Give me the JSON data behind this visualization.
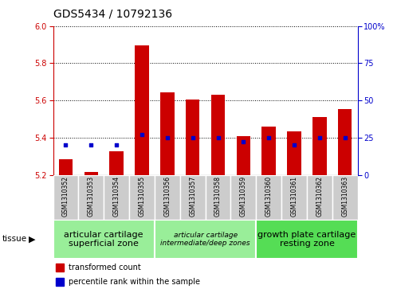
{
  "title": "GDS5434 / 10792136",
  "samples": [
    "GSM1310352",
    "GSM1310353",
    "GSM1310354",
    "GSM1310355",
    "GSM1310356",
    "GSM1310357",
    "GSM1310358",
    "GSM1310359",
    "GSM1310360",
    "GSM1310361",
    "GSM1310362",
    "GSM1310363"
  ],
  "transformed_count": [
    5.285,
    5.215,
    5.325,
    5.895,
    5.645,
    5.605,
    5.63,
    5.41,
    5.46,
    5.435,
    5.51,
    5.555
  ],
  "percentile_rank": [
    20,
    20,
    20,
    27,
    25,
    25,
    25,
    22,
    25,
    20,
    25,
    25
  ],
  "base_value": 5.2,
  "ylim_left": [
    5.2,
    6.0
  ],
  "ylim_right": [
    0,
    100
  ],
  "yticks_left": [
    5.2,
    5.4,
    5.6,
    5.8,
    6.0
  ],
  "yticks_right": [
    0,
    25,
    50,
    75,
    100
  ],
  "bar_color": "#cc0000",
  "dot_color": "#0000cc",
  "bar_width": 0.55,
  "groups": [
    {
      "label": "articular cartilage\nsuperficial zone",
      "start": 0,
      "end": 4,
      "color": "#99ee99",
      "fontsize": 8,
      "italic": false
    },
    {
      "label": "articular cartilage\nintermediate/deep zones",
      "start": 4,
      "end": 8,
      "color": "#99ee99",
      "fontsize": 6.5,
      "italic": true
    },
    {
      "label": "growth plate cartilage\nresting zone",
      "start": 8,
      "end": 12,
      "color": "#55dd55",
      "fontsize": 8,
      "italic": false
    }
  ],
  "tissue_label": "tissue",
  "legend_items": [
    {
      "color": "#cc0000",
      "label": "transformed count"
    },
    {
      "color": "#0000cc",
      "label": "percentile rank within the sample"
    }
  ],
  "left_color": "#cc0000",
  "right_color": "#0000cc",
  "title_fontsize": 10,
  "tick_fontsize": 7,
  "sample_fontsize": 5.5,
  "legend_fontsize": 7
}
